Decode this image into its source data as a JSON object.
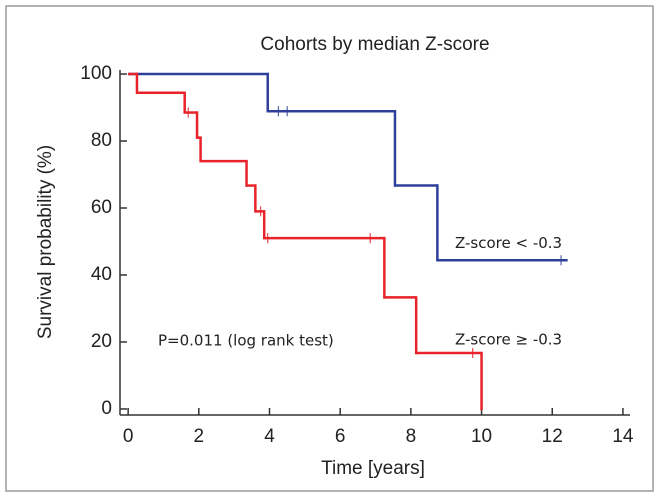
{
  "chart_data": {
    "type": "step",
    "title": "Cohorts by median Z-score",
    "x_label": "Time [years]",
    "y_label": "Survival probability (%)",
    "annotations": [
      "P=0.011 (log rank test)"
    ],
    "xlim": [
      -0.23,
      14.2
    ],
    "ylim": [
      -1.8,
      101.2
    ],
    "xticks": [
      0,
      2,
      4,
      6,
      8,
      10,
      12,
      14
    ],
    "yticks": [
      0,
      20,
      40,
      60,
      80,
      100
    ],
    "series": [
      {
        "name": "Z-score < -0.3",
        "color": "#2e3f9a",
        "x": [
          0,
          3.95,
          7.55,
          8.75,
          12.4
        ],
        "values": [
          100,
          88.9,
          66.7,
          44.4,
          44.4
        ],
        "censored": [
          4.25,
          4.5,
          12.25
        ]
      },
      {
        "name": "Z-score ≥ -0.3",
        "color": "#e8232a",
        "x": [
          0,
          0.25,
          1.6,
          1.95,
          2.05,
          3.35,
          3.6,
          3.85,
          7.25,
          8.15,
          10
        ],
        "values": [
          100,
          94.4,
          88.5,
          81,
          74,
          66.7,
          59,
          51,
          33.3,
          16.7,
          0
        ],
        "censored": [
          1.7,
          3.75,
          3.95,
          6.85,
          9.75
        ]
      }
    ]
  }
}
